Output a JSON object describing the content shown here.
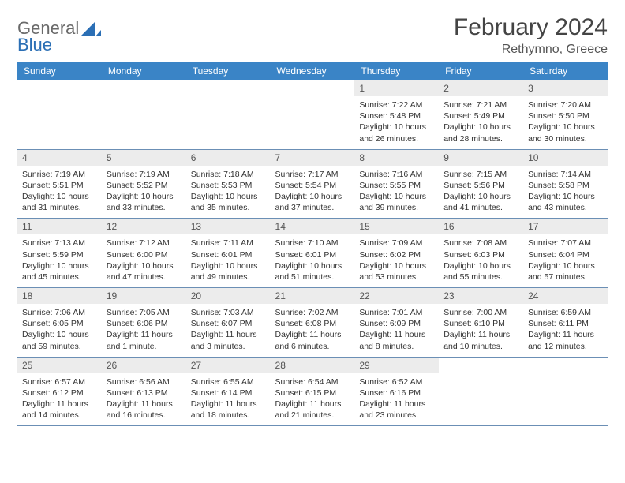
{
  "brand": {
    "word1": "General",
    "word2": "Blue"
  },
  "title": "February 2024",
  "location": "Rethymno, Greece",
  "colors": {
    "header_bg": "#3a84c6",
    "header_fg": "#ffffff",
    "daynum_bg": "#ececec",
    "row_border": "#6b8fb5",
    "logo_gray": "#6a6a6a",
    "logo_blue": "#2b6fb5"
  },
  "weekdays": [
    "Sunday",
    "Monday",
    "Tuesday",
    "Wednesday",
    "Thursday",
    "Friday",
    "Saturday"
  ],
  "weeks": [
    [
      {
        "n": "",
        "sr": "",
        "ss": "",
        "dl": "",
        "empty": true
      },
      {
        "n": "",
        "sr": "",
        "ss": "",
        "dl": "",
        "empty": true
      },
      {
        "n": "",
        "sr": "",
        "ss": "",
        "dl": "",
        "empty": true
      },
      {
        "n": "",
        "sr": "",
        "ss": "",
        "dl": "",
        "empty": true
      },
      {
        "n": "1",
        "sr": "Sunrise: 7:22 AM",
        "ss": "Sunset: 5:48 PM",
        "dl": "Daylight: 10 hours and 26 minutes."
      },
      {
        "n": "2",
        "sr": "Sunrise: 7:21 AM",
        "ss": "Sunset: 5:49 PM",
        "dl": "Daylight: 10 hours and 28 minutes."
      },
      {
        "n": "3",
        "sr": "Sunrise: 7:20 AM",
        "ss": "Sunset: 5:50 PM",
        "dl": "Daylight: 10 hours and 30 minutes."
      }
    ],
    [
      {
        "n": "4",
        "sr": "Sunrise: 7:19 AM",
        "ss": "Sunset: 5:51 PM",
        "dl": "Daylight: 10 hours and 31 minutes."
      },
      {
        "n": "5",
        "sr": "Sunrise: 7:19 AM",
        "ss": "Sunset: 5:52 PM",
        "dl": "Daylight: 10 hours and 33 minutes."
      },
      {
        "n": "6",
        "sr": "Sunrise: 7:18 AM",
        "ss": "Sunset: 5:53 PM",
        "dl": "Daylight: 10 hours and 35 minutes."
      },
      {
        "n": "7",
        "sr": "Sunrise: 7:17 AM",
        "ss": "Sunset: 5:54 PM",
        "dl": "Daylight: 10 hours and 37 minutes."
      },
      {
        "n": "8",
        "sr": "Sunrise: 7:16 AM",
        "ss": "Sunset: 5:55 PM",
        "dl": "Daylight: 10 hours and 39 minutes."
      },
      {
        "n": "9",
        "sr": "Sunrise: 7:15 AM",
        "ss": "Sunset: 5:56 PM",
        "dl": "Daylight: 10 hours and 41 minutes."
      },
      {
        "n": "10",
        "sr": "Sunrise: 7:14 AM",
        "ss": "Sunset: 5:58 PM",
        "dl": "Daylight: 10 hours and 43 minutes."
      }
    ],
    [
      {
        "n": "11",
        "sr": "Sunrise: 7:13 AM",
        "ss": "Sunset: 5:59 PM",
        "dl": "Daylight: 10 hours and 45 minutes."
      },
      {
        "n": "12",
        "sr": "Sunrise: 7:12 AM",
        "ss": "Sunset: 6:00 PM",
        "dl": "Daylight: 10 hours and 47 minutes."
      },
      {
        "n": "13",
        "sr": "Sunrise: 7:11 AM",
        "ss": "Sunset: 6:01 PM",
        "dl": "Daylight: 10 hours and 49 minutes."
      },
      {
        "n": "14",
        "sr": "Sunrise: 7:10 AM",
        "ss": "Sunset: 6:01 PM",
        "dl": "Daylight: 10 hours and 51 minutes."
      },
      {
        "n": "15",
        "sr": "Sunrise: 7:09 AM",
        "ss": "Sunset: 6:02 PM",
        "dl": "Daylight: 10 hours and 53 minutes."
      },
      {
        "n": "16",
        "sr": "Sunrise: 7:08 AM",
        "ss": "Sunset: 6:03 PM",
        "dl": "Daylight: 10 hours and 55 minutes."
      },
      {
        "n": "17",
        "sr": "Sunrise: 7:07 AM",
        "ss": "Sunset: 6:04 PM",
        "dl": "Daylight: 10 hours and 57 minutes."
      }
    ],
    [
      {
        "n": "18",
        "sr": "Sunrise: 7:06 AM",
        "ss": "Sunset: 6:05 PM",
        "dl": "Daylight: 10 hours and 59 minutes."
      },
      {
        "n": "19",
        "sr": "Sunrise: 7:05 AM",
        "ss": "Sunset: 6:06 PM",
        "dl": "Daylight: 11 hours and 1 minute."
      },
      {
        "n": "20",
        "sr": "Sunrise: 7:03 AM",
        "ss": "Sunset: 6:07 PM",
        "dl": "Daylight: 11 hours and 3 minutes."
      },
      {
        "n": "21",
        "sr": "Sunrise: 7:02 AM",
        "ss": "Sunset: 6:08 PM",
        "dl": "Daylight: 11 hours and 6 minutes."
      },
      {
        "n": "22",
        "sr": "Sunrise: 7:01 AM",
        "ss": "Sunset: 6:09 PM",
        "dl": "Daylight: 11 hours and 8 minutes."
      },
      {
        "n": "23",
        "sr": "Sunrise: 7:00 AM",
        "ss": "Sunset: 6:10 PM",
        "dl": "Daylight: 11 hours and 10 minutes."
      },
      {
        "n": "24",
        "sr": "Sunrise: 6:59 AM",
        "ss": "Sunset: 6:11 PM",
        "dl": "Daylight: 11 hours and 12 minutes."
      }
    ],
    [
      {
        "n": "25",
        "sr": "Sunrise: 6:57 AM",
        "ss": "Sunset: 6:12 PM",
        "dl": "Daylight: 11 hours and 14 minutes."
      },
      {
        "n": "26",
        "sr": "Sunrise: 6:56 AM",
        "ss": "Sunset: 6:13 PM",
        "dl": "Daylight: 11 hours and 16 minutes."
      },
      {
        "n": "27",
        "sr": "Sunrise: 6:55 AM",
        "ss": "Sunset: 6:14 PM",
        "dl": "Daylight: 11 hours and 18 minutes."
      },
      {
        "n": "28",
        "sr": "Sunrise: 6:54 AM",
        "ss": "Sunset: 6:15 PM",
        "dl": "Daylight: 11 hours and 21 minutes."
      },
      {
        "n": "29",
        "sr": "Sunrise: 6:52 AM",
        "ss": "Sunset: 6:16 PM",
        "dl": "Daylight: 11 hours and 23 minutes."
      },
      {
        "n": "",
        "sr": "",
        "ss": "",
        "dl": "",
        "empty": true
      },
      {
        "n": "",
        "sr": "",
        "ss": "",
        "dl": "",
        "empty": true
      }
    ]
  ]
}
